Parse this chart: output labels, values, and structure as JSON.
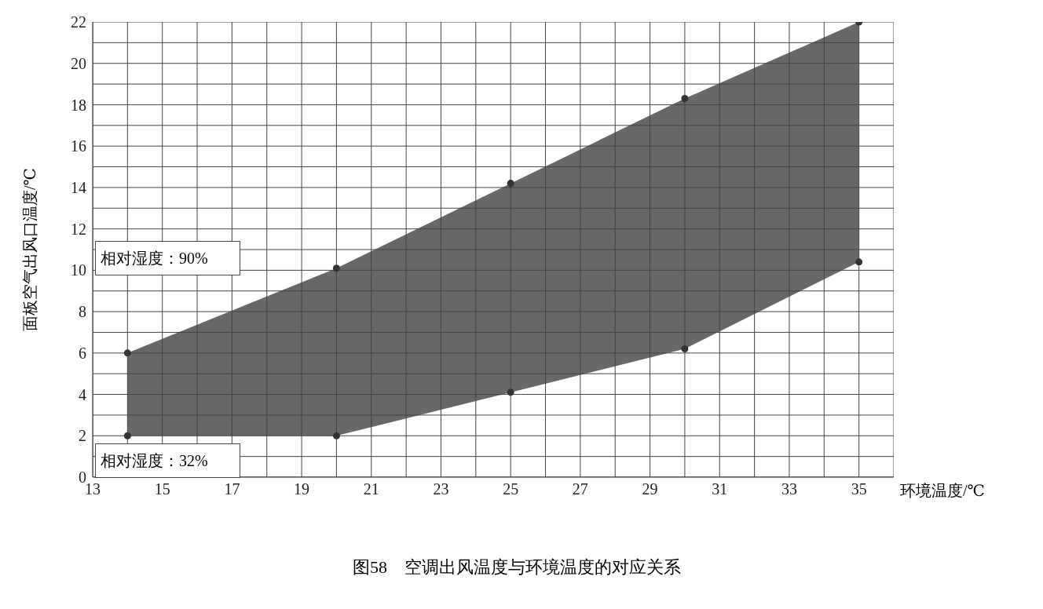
{
  "chart_data": {
    "type": "area",
    "title": "图58　空调出风温度与环境温度的对应关系",
    "xlabel": "环境温度/℃",
    "ylabel": "面板空气出风口温度/℃",
    "x": [
      14,
      20,
      25,
      30,
      35
    ],
    "series": [
      {
        "color": "#686868",
        "values": [
          null,
          null,
          null,
          null,
          null
        ],
        "lower": [
          2,
          2,
          4.1,
          6.2,
          10.4
        ],
        "upper": [
          6,
          10.1,
          14.2,
          18.3,
          22
        ]
      },
      {
        "type": "scatter",
        "color": "#333333",
        "values": [
          2,
          2,
          4.1,
          6.2,
          10.4
        ]
      },
      {
        "type": "scatter",
        "color": "#333333",
        "values": [
          6,
          10.1,
          14.2,
          18.3,
          22
        ]
      }
    ],
    "xlim": [
      13,
      36
    ],
    "xticks": [
      13,
      15,
      17,
      19,
      21,
      23,
      25,
      27,
      29,
      31,
      33,
      35
    ],
    "ylim": [
      0,
      22
    ],
    "yticks": [
      0,
      2,
      4,
      6,
      8,
      10,
      12,
      14,
      16,
      18,
      20,
      22
    ],
    "grid": true,
    "marker": "circle",
    "legend": false,
    "annotations": [
      "相对湿度：90%",
      "相对湿度：32%"
    ]
  }
}
